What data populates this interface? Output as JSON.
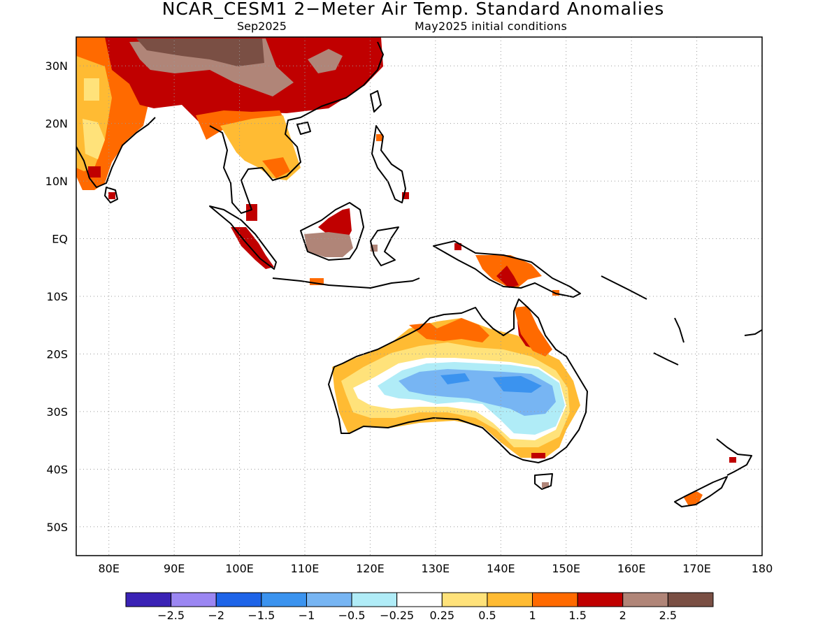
{
  "title": "NCAR_CESM1 2−Meter Air Temp. Standard Anomalies",
  "subtitle_left": "Sep2025",
  "subtitle_right": "May2025 initial conditions",
  "map": {
    "lon_range": [
      75,
      180
    ],
    "lat_range": [
      -55,
      35
    ],
    "grid": true,
    "lon_ticks": [
      {
        "value": 80,
        "label": "80E"
      },
      {
        "value": 90,
        "label": "90E"
      },
      {
        "value": 100,
        "label": "100E"
      },
      {
        "value": 110,
        "label": "110E"
      },
      {
        "value": 120,
        "label": "120E"
      },
      {
        "value": 130,
        "label": "130E"
      },
      {
        "value": 140,
        "label": "140E"
      },
      {
        "value": 150,
        "label": "150E"
      },
      {
        "value": 160,
        "label": "160E"
      },
      {
        "value": 170,
        "label": "170E"
      },
      {
        "value": 180,
        "label": "180"
      }
    ],
    "lat_ticks": [
      {
        "value": 30,
        "label": "30N"
      },
      {
        "value": 20,
        "label": "20N"
      },
      {
        "value": 10,
        "label": "10N"
      },
      {
        "value": 0,
        "label": "EQ"
      },
      {
        "value": -10,
        "label": "10S"
      },
      {
        "value": -20,
        "label": "20S"
      },
      {
        "value": -30,
        "label": "30S"
      },
      {
        "value": -40,
        "label": "40S"
      },
      {
        "value": -50,
        "label": "50S"
      }
    ]
  },
  "colorbar": {
    "colors": [
      "#3a22b5",
      "#9b86f2",
      "#1e64e8",
      "#3b93ef",
      "#77b5f3",
      "#b0ecf7",
      "#ffffff",
      "#ffe27a",
      "#ffbb33",
      "#ff6a00",
      "#c00000",
      "#b08578",
      "#7a4f44"
    ],
    "labels": [
      "−2.5",
      "−2",
      "−1.5",
      "−1",
      "−0.5",
      "−0.25",
      "0.25",
      "0.5",
      "1",
      "1.5",
      "2",
      "2.5"
    ]
  }
}
